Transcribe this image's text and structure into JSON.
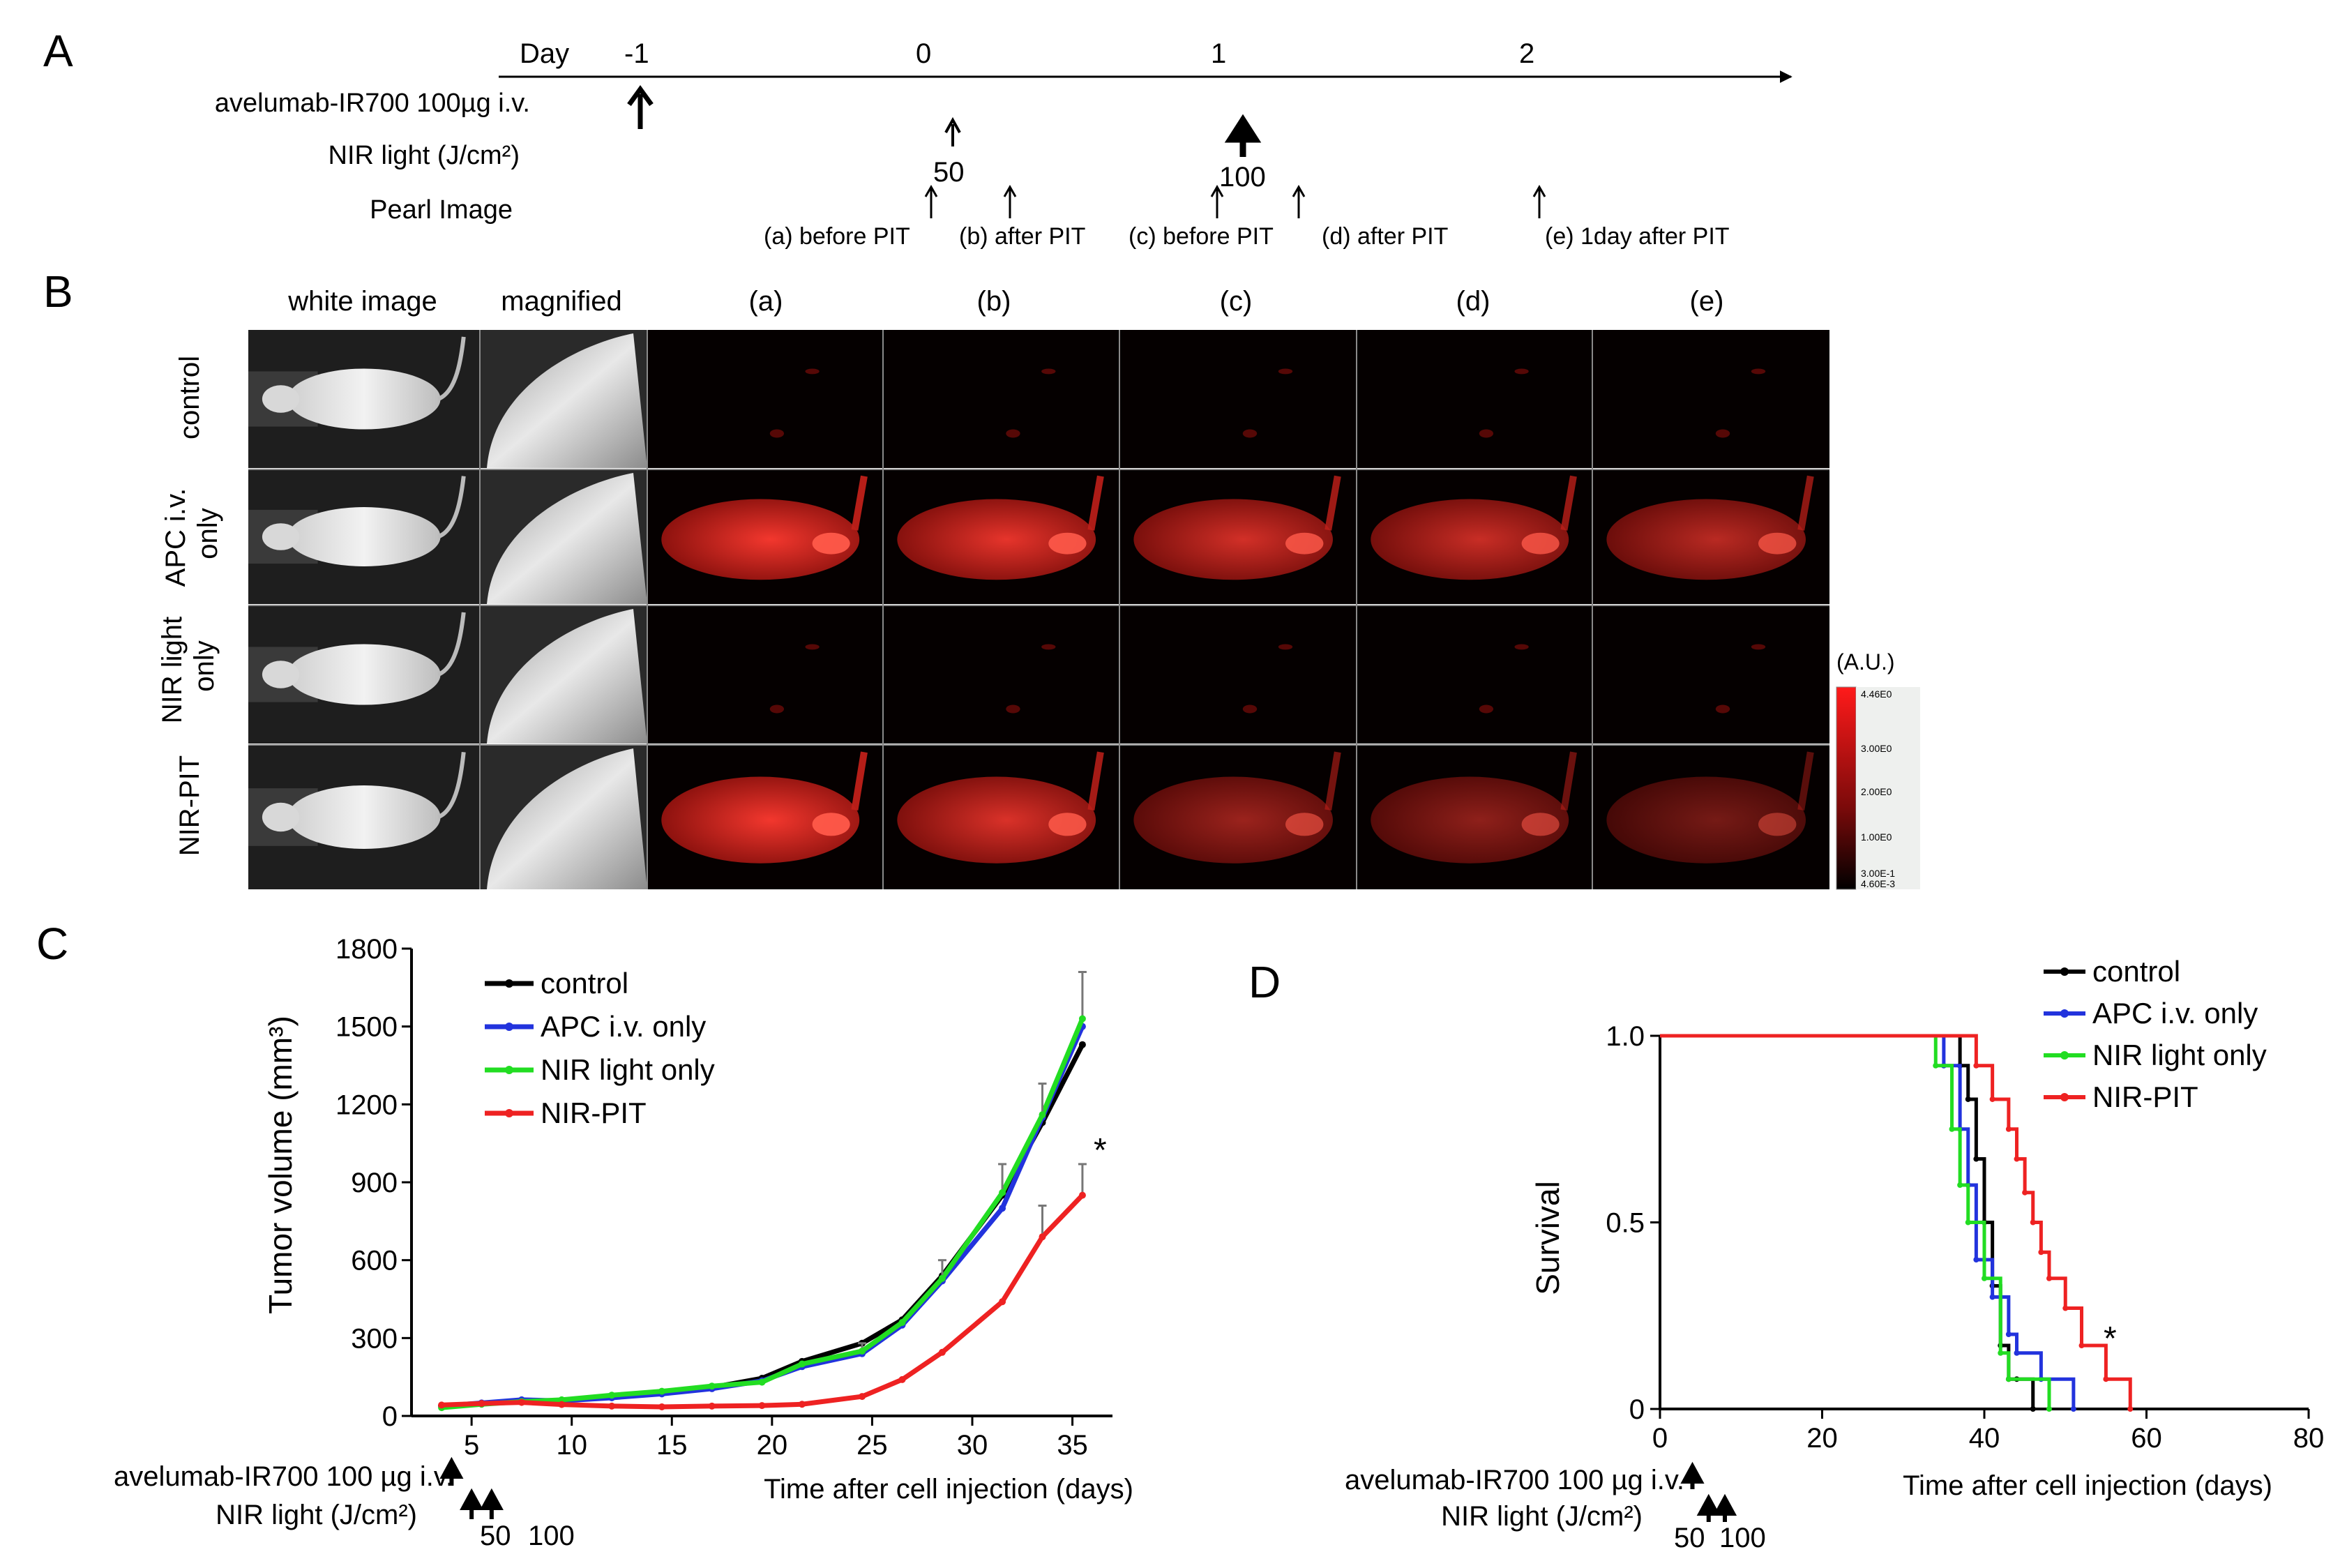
{
  "panel_labels": {
    "a": "A",
    "b": "B",
    "c": "C",
    "d": "D"
  },
  "panel_a": {
    "day_label": "Day",
    "day_ticks": [
      "-1",
      "0",
      "1",
      "2"
    ],
    "row_labels": [
      "avelumab-IR700 100µg i.v.",
      "NIR light (J/cm²)",
      "Pearl Image"
    ],
    "nir_doses": [
      "50",
      "100"
    ],
    "pearl_events": [
      "(a) before PIT",
      "(b) after PIT",
      "(c) before PIT",
      "(d) after PIT",
      "(e) 1day after PIT"
    ]
  },
  "panel_b": {
    "column_headers": [
      "white image",
      "magnified",
      "(a)",
      "(b)",
      "(c)",
      "(d)",
      "(e)"
    ],
    "row_labels": [
      [
        "control"
      ],
      [
        "APC i.v.",
        "only"
      ],
      [
        "NIR light",
        "only"
      ],
      [
        "NIR-PIT"
      ]
    ],
    "intensity": [
      [
        0.05,
        0.05,
        0.05,
        0.05,
        0.05
      ],
      [
        0.95,
        0.9,
        0.82,
        0.78,
        0.72
      ],
      [
        0.04,
        0.04,
        0.04,
        0.04,
        0.04
      ],
      [
        0.95,
        0.85,
        0.6,
        0.55,
        0.45
      ]
    ],
    "colorbar_unit": "(A.U.)",
    "colorbar_ticks": [
      "4.46E0",
      "3.00E0",
      "2.00E0",
      "1.00E0",
      "3.00E-1",
      "4.60E-3"
    ]
  },
  "panel_c": {
    "chart_data": {
      "type": "line",
      "ylabel": "Tumor volume (mm³)",
      "xlabel": "Time after cell injection (days)",
      "xlim": [
        2,
        37
      ],
      "ylim": [
        0,
        1800
      ],
      "xticks": [
        5,
        10,
        15,
        20,
        25,
        30,
        35
      ],
      "yticks": [
        0,
        300,
        600,
        900,
        1200,
        1500,
        1800
      ],
      "x": [
        3.5,
        5.5,
        7.5,
        9.5,
        12,
        14.5,
        17,
        19.5,
        21.5,
        24.5,
        26.5,
        28.5,
        31.5,
        33.5,
        35.5
      ],
      "series": [
        {
          "name": "control",
          "color": "#000000",
          "values": [
            40,
            48,
            57,
            60,
            72,
            88,
            110,
            145,
            210,
            280,
            370,
            540,
            850,
            1130,
            1430
          ],
          "err": [
            0,
            0,
            0,
            0,
            0,
            0,
            0,
            0,
            0,
            0,
            0,
            0,
            0,
            0,
            0
          ]
        },
        {
          "name": "APC i.v. only",
          "color": "#2233dd",
          "values": [
            38,
            50,
            62,
            58,
            70,
            85,
            105,
            135,
            190,
            240,
            350,
            520,
            800,
            1150,
            1500
          ],
          "err": [
            0,
            0,
            0,
            0,
            0,
            0,
            0,
            0,
            0,
            0,
            0,
            0,
            0,
            0,
            0
          ]
        },
        {
          "name": "NIR light only",
          "color": "#22dd22",
          "values": [
            32,
            45,
            55,
            62,
            80,
            95,
            115,
            130,
            200,
            250,
            360,
            530,
            860,
            1160,
            1530
          ],
          "err": [
            0,
            0,
            0,
            0,
            0,
            0,
            0,
            0,
            0,
            30,
            0,
            70,
            110,
            120,
            180
          ]
        },
        {
          "name": "NIR-PIT",
          "color": "#ee2222",
          "values": [
            42,
            48,
            52,
            44,
            38,
            35,
            38,
            40,
            45,
            75,
            140,
            245,
            440,
            690,
            850
          ],
          "err": [
            0,
            0,
            0,
            0,
            0,
            0,
            0,
            0,
            0,
            0,
            0,
            0,
            0,
            120,
            120
          ]
        }
      ],
      "legend_position": "top-left",
      "significance_marker": "*",
      "treatment_labels": [
        "avelumab-IR700 100 µg i.v.",
        "NIR light (J/cm²)"
      ],
      "treatment_doses": [
        "50",
        "100"
      ],
      "treatment_days": {
        "antibody": 4,
        "nir": [
          5,
          6
        ]
      }
    }
  },
  "panel_d": {
    "chart_data": {
      "type": "line",
      "ylabel": "Survival",
      "xlabel": "Time after cell injection (days)",
      "xlim": [
        0,
        80
      ],
      "ylim": [
        0,
        1
      ],
      "xticks": [
        0,
        20,
        40,
        60,
        80
      ],
      "yticks": [
        "0",
        "0.5",
        "1.0"
      ],
      "series": [
        {
          "name": "control",
          "color": "#000000",
          "x": [
            0,
            37,
            38,
            39,
            40,
            41,
            42,
            43,
            44,
            46
          ],
          "y": [
            1,
            0.92,
            0.83,
            0.67,
            0.5,
            0.33,
            0.17,
            0.08,
            0.08,
            0
          ]
        },
        {
          "name": "APC i.v. only",
          "color": "#2233dd",
          "x": [
            0,
            35,
            37,
            38,
            39,
            41,
            43,
            44,
            47,
            51
          ],
          "y": [
            1,
            0.92,
            0.75,
            0.6,
            0.4,
            0.3,
            0.2,
            0.15,
            0.08,
            0
          ]
        },
        {
          "name": "NIR light only",
          "color": "#22dd22",
          "x": [
            0,
            34,
            36,
            37,
            38,
            40,
            42,
            43,
            48
          ],
          "y": [
            1,
            0.92,
            0.75,
            0.6,
            0.5,
            0.35,
            0.15,
            0.08,
            0
          ]
        },
        {
          "name": "NIR-PIT",
          "color": "#ee2222",
          "x": [
            0,
            39,
            41,
            43,
            44,
            45,
            46,
            47,
            48,
            50,
            52,
            55,
            58
          ],
          "y": [
            1,
            0.92,
            0.83,
            0.75,
            0.67,
            0.58,
            0.5,
            0.42,
            0.35,
            0.27,
            0.17,
            0.08,
            0
          ]
        }
      ],
      "legend_position": "top-right",
      "significance_marker": "*",
      "treatment_labels": [
        "avelumab-IR700 100 µg i.v.",
        "NIR light (J/cm²)"
      ],
      "treatment_doses": [
        "50",
        "100"
      ],
      "treatment_days": {
        "antibody": 4,
        "nir": [
          6,
          8
        ]
      }
    }
  }
}
